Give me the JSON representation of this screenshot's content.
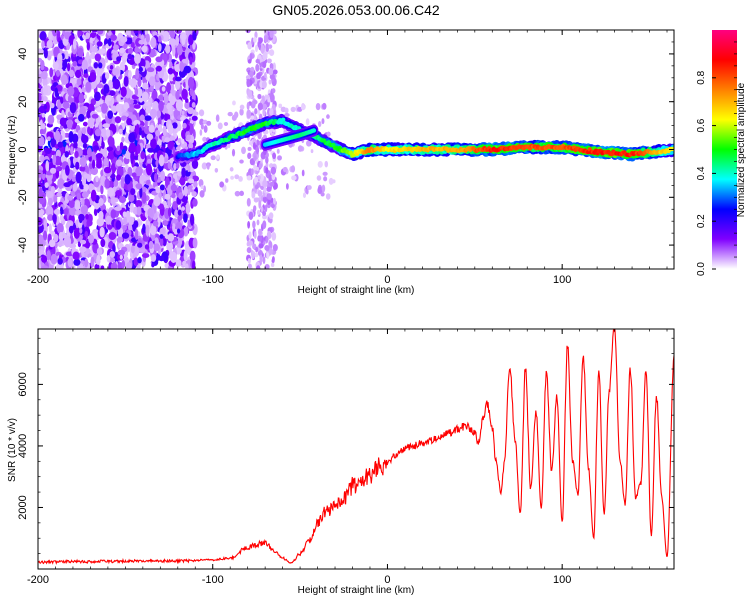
{
  "chart_data": [
    {
      "type": "heatmap",
      "title": "GN05.2026.053.00.06.C42",
      "xlabel": "Height of straight line (km)",
      "ylabel": "Frequency (Hz)",
      "xlim": [
        -200,
        164
      ],
      "ylim": [
        -50,
        50
      ],
      "xticks": [
        -200,
        -100,
        0,
        100
      ],
      "yticks": [
        -40,
        -20,
        0,
        20,
        40
      ],
      "colorbar": {
        "label": "Normalized spectral amplitude",
        "range": [
          0,
          1
        ],
        "ticks": [
          "0.0",
          "0.2",
          "0.4",
          "0.6",
          "0.8"
        ],
        "colors": [
          "#ffffff",
          "#8000ff",
          "#0000ff",
          "#00ffff",
          "#00ff00",
          "#ffff00",
          "#ff8000",
          "#ff0000",
          "#ff0080"
        ]
      },
      "ridge": [
        {
          "x": -120,
          "y": -3,
          "a": 0.25
        },
        {
          "x": -110,
          "y": -2,
          "a": 0.35
        },
        {
          "x": -100,
          "y": 2,
          "a": 0.4
        },
        {
          "x": -90,
          "y": 5,
          "a": 0.45
        },
        {
          "x": -80,
          "y": 8,
          "a": 0.5
        },
        {
          "x": -70,
          "y": 11,
          "a": 0.5
        },
        {
          "x": -60,
          "y": 12,
          "a": 0.4
        },
        {
          "x": -50,
          "y": 8,
          "a": 0.4
        },
        {
          "x": -40,
          "y": 5,
          "a": 0.45
        },
        {
          "x": -30,
          "y": 1,
          "a": 0.5
        },
        {
          "x": -20,
          "y": -2,
          "a": 0.6
        },
        {
          "x": -10,
          "y": 0,
          "a": 0.75
        },
        {
          "x": 0,
          "y": 0,
          "a": 0.65
        },
        {
          "x": 20,
          "y": 0,
          "a": 0.7
        },
        {
          "x": 40,
          "y": 0,
          "a": 0.7
        },
        {
          "x": 60,
          "y": 0,
          "a": 0.85
        },
        {
          "x": 80,
          "y": 1,
          "a": 0.8
        },
        {
          "x": 100,
          "y": 1,
          "a": 0.8
        },
        {
          "x": 120,
          "y": -1,
          "a": 0.85
        },
        {
          "x": 140,
          "y": -2,
          "a": 0.85
        },
        {
          "x": 164,
          "y": 0,
          "a": 0.6
        }
      ],
      "secondary_ridge": [
        {
          "x": -70,
          "y": 2,
          "a": 0.35
        },
        {
          "x": -60,
          "y": 4,
          "a": 0.4
        },
        {
          "x": -50,
          "y": 6,
          "a": 0.45
        },
        {
          "x": -42,
          "y": 8,
          "a": 0.4
        }
      ]
    },
    {
      "type": "line",
      "title": "",
      "xlabel": "Height of straight line (km)",
      "ylabel": "SNR (10 * v/v)",
      "xlim": [
        -200,
        164
      ],
      "ylim": [
        0,
        7800
      ],
      "xticks": [
        -200,
        -100,
        0,
        100
      ],
      "yticks": [
        2000,
        4000,
        6000
      ],
      "color": "#ff0000",
      "series": [
        {
          "name": "SNR",
          "x": [
            -200,
            -180,
            -160,
            -140,
            -120,
            -100,
            -90,
            -80,
            -75,
            -70,
            -65,
            -60,
            -55,
            -50,
            -45,
            -40,
            -35,
            -30,
            -25,
            -20,
            -15,
            -10,
            -5,
            0,
            5,
            10,
            15,
            20,
            25,
            30,
            35,
            40,
            45,
            50,
            52,
            55,
            57,
            60,
            62,
            65,
            67,
            70,
            73,
            76,
            79,
            82,
            85,
            88,
            91,
            94,
            97,
            100,
            103,
            106,
            109,
            112,
            115,
            118,
            121,
            124,
            127,
            130,
            133,
            136,
            139,
            142,
            145,
            148,
            151,
            154,
            157,
            160,
            164
          ],
          "y": [
            220,
            240,
            250,
            260,
            260,
            300,
            350,
            700,
            800,
            850,
            600,
            350,
            200,
            500,
            900,
            1500,
            1900,
            2000,
            2300,
            2700,
            2900,
            3100,
            3300,
            3500,
            3700,
            3900,
            4000,
            4100,
            4200,
            4300,
            4400,
            4550,
            4650,
            4400,
            4100,
            4900,
            5400,
            4600,
            3500,
            2500,
            3500,
            6700,
            4200,
            1800,
            6500,
            2600,
            5100,
            2000,
            6400,
            3200,
            5600,
            1500,
            7300,
            3500,
            2400,
            6900,
            3300,
            1000,
            6400,
            1800,
            5900,
            7800,
            3600,
            2100,
            6500,
            2300,
            2800,
            6400,
            1100,
            5600,
            2300,
            400,
            6900
          ]
        }
      ]
    }
  ]
}
